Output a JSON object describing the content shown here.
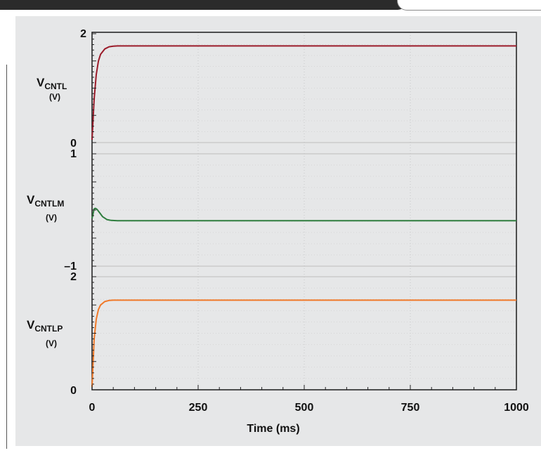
{
  "chart_data": {
    "type": "line",
    "xlabel": "Time (ms)",
    "x_ticks": [
      0,
      250,
      500,
      750,
      1000
    ],
    "xlim": [
      0,
      1000
    ],
    "grid": true,
    "panels": [
      {
        "ylabel_main": "V",
        "ylabel_sub": "CNTL",
        "ylabel_unit": "(V)",
        "ylim": [
          0,
          2
        ],
        "y_tick_labels": [
          "2",
          "0"
        ],
        "series": [
          {
            "color": "#9b1b2a",
            "x": [
              0,
              5,
              10,
              15,
              20,
              30,
              40,
              50,
              60,
              70,
              100,
              250,
              500,
              750,
              1000
            ],
            "y": [
              0.05,
              0.8,
              1.25,
              1.5,
              1.62,
              1.72,
              1.76,
              1.77,
              1.775,
              1.775,
              1.775,
              1.775,
              1.775,
              1.775,
              1.775
            ]
          }
        ]
      },
      {
        "ylabel_main": "V",
        "ylabel_sub": "CNTLM",
        "ylabel_unit": "(V)",
        "ylim": [
          -1,
          1
        ],
        "y_tick_labels": [
          "1",
          "–1"
        ],
        "series": [
          {
            "color": "#2e7d3e",
            "x": [
              0,
              5,
              8,
              12,
              18,
              25,
              35,
              45,
              60,
              100,
              250,
              500,
              750,
              1000
            ],
            "y": [
              -0.15,
              0.02,
              0.03,
              0.01,
              -0.05,
              -0.12,
              -0.17,
              -0.185,
              -0.19,
              -0.19,
              -0.19,
              -0.19,
              -0.19,
              -0.19
            ]
          }
        ]
      },
      {
        "ylabel_main": "V",
        "ylabel_sub": "CNTLP",
        "ylabel_unit": "(V)",
        "ylim": [
          0,
          2
        ],
        "y_tick_labels": [
          "2",
          "0"
        ],
        "series": [
          {
            "color": "#f07828",
            "x": [
              0,
              5,
              10,
              15,
              20,
              30,
              40,
              50,
              60,
              100,
              250,
              500,
              750,
              1000
            ],
            "y": [
              0.05,
              0.9,
              1.25,
              1.42,
              1.5,
              1.56,
              1.58,
              1.585,
              1.585,
              1.585,
              1.585,
              1.585,
              1.585,
              1.585
            ]
          }
        ]
      }
    ]
  }
}
